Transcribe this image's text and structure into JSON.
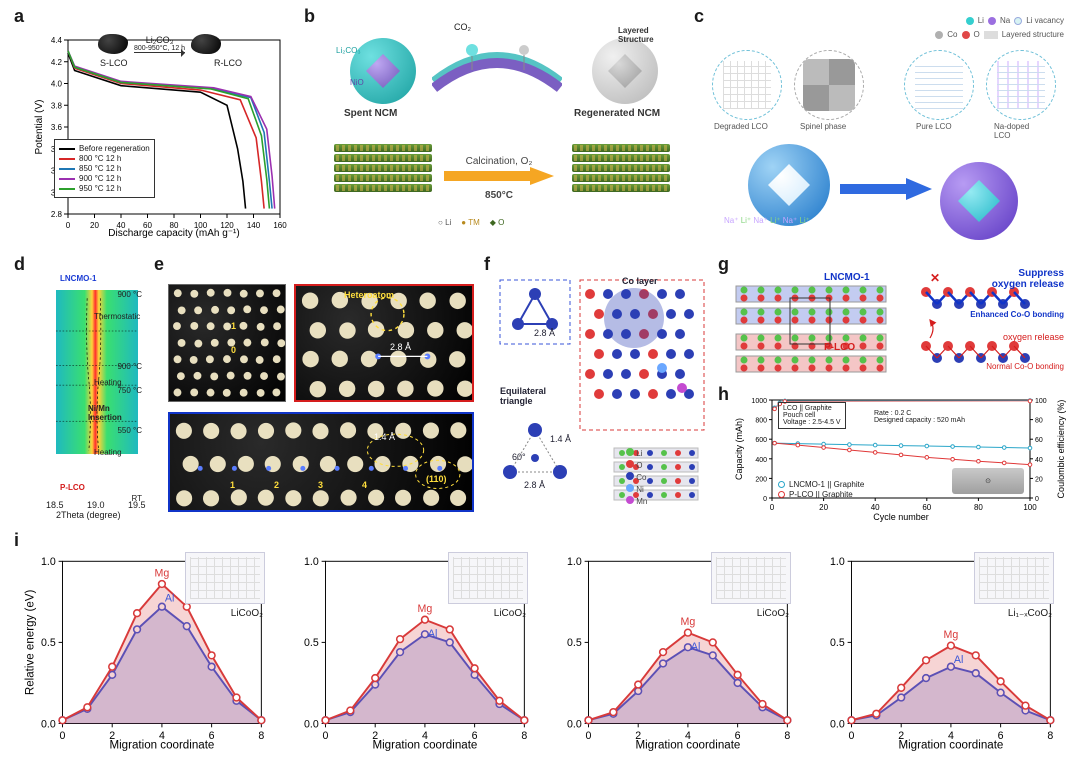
{
  "labels": {
    "a": "a",
    "b": "b",
    "c": "c",
    "d": "d",
    "e": "e",
    "f": "f",
    "g": "g",
    "h": "h",
    "i": "i"
  },
  "panel_a": {
    "type": "line",
    "xlabel": "Discharge capacity (mAh g⁻¹)",
    "ylabel": "Potential (V)",
    "xlim": [
      0,
      160
    ],
    "ylim": [
      2.8,
      4.4
    ],
    "xtick_step": 20,
    "ytick_step": 0.2,
    "grid_color": "#e8e8e8",
    "background_color": "#ffffff",
    "series": [
      {
        "name": "Before regeneration",
        "color": "#000000",
        "x": [
          0,
          5,
          40,
          100,
          120,
          128,
          132,
          134
        ],
        "y": [
          4.28,
          4.12,
          3.98,
          3.92,
          3.8,
          3.4,
          3.1,
          2.85
        ]
      },
      {
        "name": "800 °C 12 h",
        "color": "#d62728",
        "x": [
          0,
          5,
          40,
          100,
          130,
          142,
          146,
          148
        ],
        "y": [
          4.3,
          4.14,
          4.0,
          3.94,
          3.85,
          3.5,
          3.1,
          2.85
        ]
      },
      {
        "name": "850 °C 12 h",
        "color": "#1f77b4",
        "x": [
          0,
          5,
          40,
          110,
          138,
          148,
          152,
          154
        ],
        "y": [
          4.3,
          4.15,
          4.01,
          3.95,
          3.87,
          3.55,
          3.1,
          2.85
        ]
      },
      {
        "name": "900 °C 12 h",
        "color": "#9b30b0",
        "x": [
          0,
          5,
          40,
          110,
          138,
          150,
          154,
          156
        ],
        "y": [
          4.3,
          4.16,
          4.02,
          3.96,
          3.88,
          3.58,
          3.15,
          2.85
        ]
      },
      {
        "name": "950 °C 12 h",
        "color": "#2ca02c",
        "x": [
          0,
          5,
          40,
          108,
          136,
          146,
          150,
          152
        ],
        "y": [
          4.3,
          4.15,
          4.01,
          3.95,
          3.86,
          3.52,
          3.12,
          2.85
        ]
      }
    ],
    "inset_labels": {
      "left": "S-LCO",
      "mid": "Li₂CO₃",
      "temp": "800-950°C, 12 h",
      "right": "R-LCO"
    }
  },
  "panel_b": {
    "left_title": "Spent NCM",
    "right_title": "Regenerated NCM",
    "sub_right": "Layered\nStructure",
    "arrow_label_top": "Calcination, O₂",
    "arrow_label_bot": "850°C",
    "co2": "CO₂",
    "legend": {
      "Li": "Li",
      "TM": "TM",
      "O": "O",
      "Li2CO3": "Li₂CO₃",
      "NiO": "NiO"
    },
    "colors": {
      "spent_outer": "#38c6c6",
      "spent_inner": "#8f78c5",
      "regen_outer": "#d6d6d6",
      "regen_inner": "#ababab",
      "arrow": "#f5a623"
    }
  },
  "panel_c": {
    "legend": {
      "Li": "Li",
      "Na": "Na",
      "Li_vac": "Li vacancy",
      "Co": "Co",
      "O": "O",
      "Layered": "Layered structure"
    },
    "legend_colors": {
      "Li": "#35cfcf",
      "Na": "#9b6fe0",
      "Li_vac": "#d8f3f3",
      "Co": "#b0b0b0",
      "O": "#e04848"
    },
    "captions": {
      "degraded": "Degraded LCO",
      "spinel": "Spinel phase",
      "pure": "Pure LCO",
      "na": "Na-doped\nLCO"
    },
    "sphere_colors": {
      "left_outer": "#3aa8e8",
      "left_inner": "#cfeafc",
      "right_outer": "#7a52d6",
      "right_inner": "#3ad0e6"
    },
    "accent_arrow": "#2f6ae0"
  },
  "panel_d": {
    "xlabel": "2Theta (degree)",
    "xlim": [
      18.5,
      19.5
    ],
    "xticks": [
      18.5,
      19.0,
      19.5
    ],
    "yticks_right": [
      "900 °C",
      "900 °C",
      "750 °C",
      "550 °C",
      "RT"
    ],
    "stage_labels": [
      "Thermostatic",
      "Heating",
      "Ni/Mn\nInsertion",
      "Heating"
    ],
    "tags": {
      "top": "LNCMO-1",
      "bottom": "P-LCO"
    },
    "colors": {
      "bg_left": "#1fb9c0",
      "bg_mid": "#3adf70",
      "peak": "#ff2d2d",
      "peak_outer": "#ffd23a"
    }
  },
  "panel_e": {
    "hetero": "Heteroatom",
    "dist_top": "2.8 Å",
    "dist_bot": "1.4 Å",
    "plane": "(110)",
    "row_idx": [
      "1",
      "2",
      "3",
      "4"
    ],
    "col_idx": [
      "1",
      "0"
    ],
    "outline_color": "#ffde3d",
    "marker_color": "#5a7dff"
  },
  "panel_f": {
    "co_layer": "Co layer",
    "eq_tri": "Equilateral\ntriangle",
    "d28": "2.8 Å",
    "d14": "1.4 Å",
    "ang": "60°",
    "legend": {
      "Li": "Li",
      "O": "O",
      "Co": "Co",
      "Ni": "Ni",
      "Mn": "Mn"
    },
    "legend_colors": {
      "Li": "#56c24b",
      "O": "#e03b3b",
      "Co": "#2c3fb5",
      "Ni": "#6aa7ff",
      "Mn": "#c44bd1"
    }
  },
  "panel_g": {
    "lncmo": "LNCMO-1",
    "plco": "P-LCO",
    "suppress": "Suppress\noxygen release",
    "enhanced": "Enhanced Co-O bonding",
    "release": "oxygen release",
    "normal": "Normal Co-O bonding",
    "colors": {
      "top_text": "#1034c8",
      "bot_text": "#d51d1d",
      "li": "#56c24b",
      "o": "#e03b3b",
      "co": "#2c3fb5"
    }
  },
  "panel_h": {
    "type": "scatter_line",
    "xlabel": "Cycle number",
    "ylabel_left": "Capacity (mAh)",
    "ylabel_right": "Coulombic efficiency (%)",
    "xlim": [
      0,
      100
    ],
    "xtick_step": 20,
    "ylim_left": [
      0,
      1000
    ],
    "ytick_left_step": 200,
    "ylim_right": [
      0,
      100
    ],
    "ytick_right_step": 20,
    "box_text": "LCO || Graphite\nPouch cell\nVoltage : 2.5-4.5 V",
    "inline_text": "Rate : 0.2 C\nDesigned capacity : 520 mAh",
    "legend": [
      {
        "label": "LNCMO-1 || Graphite",
        "color": "#2aa6c9"
      },
      {
        "label": "P-LCO || Graphite",
        "color": "#e03838"
      }
    ],
    "series": [
      {
        "name": "LNCMO-1 cap",
        "color": "#2aa6c9",
        "kind": "left",
        "pts": [
          [
            1,
            560
          ],
          [
            10,
            555
          ],
          [
            20,
            550
          ],
          [
            30,
            545
          ],
          [
            40,
            540
          ],
          [
            50,
            535
          ],
          [
            60,
            530
          ],
          [
            70,
            525
          ],
          [
            80,
            520
          ],
          [
            90,
            515
          ],
          [
            100,
            510
          ]
        ]
      },
      {
        "name": "P-LCO cap",
        "color": "#e03838",
        "kind": "left",
        "pts": [
          [
            1,
            560
          ],
          [
            10,
            540
          ],
          [
            20,
            515
          ],
          [
            30,
            490
          ],
          [
            40,
            465
          ],
          [
            50,
            440
          ],
          [
            60,
            415
          ],
          [
            70,
            395
          ],
          [
            80,
            375
          ],
          [
            90,
            358
          ],
          [
            100,
            340
          ]
        ]
      },
      {
        "name": "CE_L",
        "color": "#2aa6c9",
        "kind": "right",
        "pts": [
          [
            1,
            92
          ],
          [
            3,
            97
          ],
          [
            5,
            99
          ],
          [
            100,
            99.5
          ]
        ]
      },
      {
        "name": "CE_P",
        "color": "#e03838",
        "kind": "right",
        "pts": [
          [
            1,
            91
          ],
          [
            3,
            96
          ],
          [
            5,
            98.5
          ],
          [
            100,
            99
          ]
        ]
      }
    ]
  },
  "panel_i": {
    "xlabel": "Migration coordinate",
    "ylabel": "Relative energy (eV)",
    "xlim": [
      0,
      8
    ],
    "ylim": [
      0,
      1.0
    ],
    "xtick_step": 2,
    "ytick_step": 0.5,
    "line_colors": {
      "Mg": "#d83a3a",
      "Al": "#3a56d8"
    },
    "fill_opacity": 0.22,
    "labels": {
      "Mg": "Mg",
      "Al": "Al"
    },
    "subplots": [
      {
        "phase": "LiCoO₂",
        "mg": [
          0.02,
          0.1,
          0.35,
          0.68,
          0.86,
          0.72,
          0.42,
          0.16,
          0.02
        ],
        "al": [
          0.02,
          0.09,
          0.3,
          0.58,
          0.72,
          0.6,
          0.35,
          0.14,
          0.02
        ]
      },
      {
        "phase": "LiCoO₂",
        "mg": [
          0.02,
          0.08,
          0.28,
          0.52,
          0.64,
          0.58,
          0.34,
          0.14,
          0.02
        ],
        "al": [
          0.02,
          0.07,
          0.24,
          0.44,
          0.55,
          0.5,
          0.3,
          0.12,
          0.02
        ]
      },
      {
        "phase": "LiCoO₂",
        "mg": [
          0.02,
          0.07,
          0.24,
          0.44,
          0.56,
          0.5,
          0.3,
          0.12,
          0.02
        ],
        "al": [
          0.02,
          0.06,
          0.2,
          0.37,
          0.47,
          0.42,
          0.25,
          0.1,
          0.02
        ]
      },
      {
        "phase": "Li₁₋ₓCoO₂",
        "mg": [
          0.02,
          0.06,
          0.22,
          0.39,
          0.48,
          0.42,
          0.26,
          0.11,
          0.02
        ],
        "al": [
          0.02,
          0.05,
          0.16,
          0.28,
          0.35,
          0.31,
          0.19,
          0.08,
          0.02
        ]
      }
    ]
  }
}
